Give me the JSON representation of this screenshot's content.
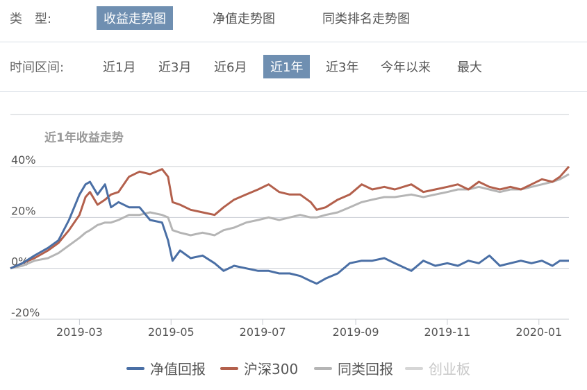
{
  "filters": {
    "type_label": "类　型:",
    "type_tabs": [
      {
        "label": "收益走势图",
        "active": true
      },
      {
        "label": "净值走势图",
        "active": false
      },
      {
        "label": "同类排名走势图",
        "active": false
      }
    ],
    "range_label": "时间区间:",
    "range_tabs": [
      {
        "label": "近1月",
        "active": false
      },
      {
        "label": "近3月",
        "active": false
      },
      {
        "label": "近6月",
        "active": false
      },
      {
        "label": "近1年",
        "active": true
      },
      {
        "label": "近3年",
        "active": false
      },
      {
        "label": "今年以来",
        "active": false
      },
      {
        "label": "最大",
        "active": false
      }
    ]
  },
  "colors": {
    "active_tab": "#6f8fb1",
    "series": [
      "#4a6fa5",
      "#b3604c",
      "#b5b5b5",
      "#d6d6d6"
    ]
  },
  "chart_data": {
    "type": "line",
    "title": "近1年收益走势",
    "ylim": [
      -20,
      40
    ],
    "yticks": [
      -20,
      0,
      20,
      40
    ],
    "ytick_labels": [
      "-20%",
      "0%",
      "20%",
      "40%"
    ],
    "xlim": [
      "2019-01-14",
      "2020-01-21"
    ],
    "xticks": [
      "2019-03-01",
      "2019-05-01",
      "2019-07-01",
      "2019-09-01",
      "2019-11-01",
      "2020-01-01"
    ],
    "xtick_labels": [
      "2019-03",
      "2019-05",
      "2019-07",
      "2019-09",
      "2019-11",
      "2020-01"
    ],
    "grid": true,
    "legend_position": "bottom",
    "series": [
      {
        "name": "净值回报",
        "x": [
          "2019-01-14",
          "2019-01-22",
          "2019-01-30",
          "2019-02-08",
          "2019-02-15",
          "2019-02-22",
          "2019-03-01",
          "2019-03-05",
          "2019-03-08",
          "2019-03-13",
          "2019-03-18",
          "2019-03-22",
          "2019-03-27",
          "2019-04-03",
          "2019-04-10",
          "2019-04-17",
          "2019-04-25",
          "2019-04-29",
          "2019-05-02",
          "2019-05-07",
          "2019-05-14",
          "2019-05-22",
          "2019-05-30",
          "2019-06-05",
          "2019-06-12",
          "2019-06-20",
          "2019-06-28",
          "2019-07-05",
          "2019-07-12",
          "2019-07-19",
          "2019-07-26",
          "2019-08-02",
          "2019-08-06",
          "2019-08-12",
          "2019-08-20",
          "2019-08-28",
          "2019-09-05",
          "2019-09-12",
          "2019-09-20",
          "2019-09-27",
          "2019-10-08",
          "2019-10-16",
          "2019-10-24",
          "2019-11-01",
          "2019-11-08",
          "2019-11-15",
          "2019-11-22",
          "2019-11-29",
          "2019-12-06",
          "2019-12-13",
          "2019-12-20",
          "2019-12-27",
          "2020-01-03",
          "2020-01-10",
          "2020-01-15",
          "2020-01-21"
        ],
        "values": [
          0,
          2,
          5,
          8,
          11,
          19,
          29,
          33,
          34,
          29,
          33,
          24,
          26,
          24,
          24,
          19,
          18,
          11,
          3,
          7,
          4,
          5,
          2,
          -1,
          1,
          0,
          -1,
          -1,
          -2,
          -2,
          -3,
          -5,
          -6,
          -4,
          -2,
          2,
          3,
          3,
          4,
          2,
          -1,
          3,
          1,
          2,
          1,
          3,
          2,
          5,
          1,
          2,
          3,
          2,
          3,
          1,
          3,
          3
        ]
      },
      {
        "name": "沪深300",
        "x": [
          "2019-01-14",
          "2019-01-22",
          "2019-01-30",
          "2019-02-08",
          "2019-02-15",
          "2019-02-22",
          "2019-03-01",
          "2019-03-05",
          "2019-03-08",
          "2019-03-13",
          "2019-03-18",
          "2019-03-22",
          "2019-03-27",
          "2019-04-03",
          "2019-04-10",
          "2019-04-17",
          "2019-04-25",
          "2019-04-29",
          "2019-05-02",
          "2019-05-07",
          "2019-05-14",
          "2019-05-22",
          "2019-05-30",
          "2019-06-05",
          "2019-06-12",
          "2019-06-20",
          "2019-06-28",
          "2019-07-05",
          "2019-07-12",
          "2019-07-19",
          "2019-07-26",
          "2019-08-02",
          "2019-08-06",
          "2019-08-12",
          "2019-08-20",
          "2019-08-28",
          "2019-09-05",
          "2019-09-12",
          "2019-09-20",
          "2019-09-27",
          "2019-10-08",
          "2019-10-16",
          "2019-10-24",
          "2019-11-01",
          "2019-11-08",
          "2019-11-15",
          "2019-11-22",
          "2019-11-29",
          "2019-12-06",
          "2019-12-13",
          "2019-12-20",
          "2019-12-27",
          "2020-01-03",
          "2020-01-10",
          "2020-01-15",
          "2020-01-21"
        ],
        "values": [
          0,
          2,
          4,
          7,
          10,
          15,
          21,
          28,
          30,
          25,
          27,
          29,
          30,
          36,
          38,
          37,
          39,
          36,
          26,
          25,
          23,
          22,
          21,
          24,
          27,
          29,
          31,
          33,
          30,
          29,
          29,
          26,
          23,
          24,
          27,
          29,
          33,
          31,
          32,
          31,
          33,
          30,
          31,
          32,
          33,
          31,
          34,
          32,
          31,
          32,
          31,
          33,
          35,
          34,
          36,
          40
        ]
      },
      {
        "name": "同类回报",
        "x": [
          "2019-01-14",
          "2019-01-22",
          "2019-01-30",
          "2019-02-08",
          "2019-02-15",
          "2019-02-22",
          "2019-03-01",
          "2019-03-05",
          "2019-03-08",
          "2019-03-13",
          "2019-03-18",
          "2019-03-22",
          "2019-03-27",
          "2019-04-03",
          "2019-04-10",
          "2019-04-17",
          "2019-04-25",
          "2019-04-29",
          "2019-05-02",
          "2019-05-07",
          "2019-05-14",
          "2019-05-22",
          "2019-05-30",
          "2019-06-05",
          "2019-06-12",
          "2019-06-20",
          "2019-06-28",
          "2019-07-05",
          "2019-07-12",
          "2019-07-19",
          "2019-07-26",
          "2019-08-02",
          "2019-08-06",
          "2019-08-12",
          "2019-08-20",
          "2019-08-28",
          "2019-09-05",
          "2019-09-12",
          "2019-09-20",
          "2019-09-27",
          "2019-10-08",
          "2019-10-16",
          "2019-10-24",
          "2019-11-01",
          "2019-11-08",
          "2019-11-15",
          "2019-11-22",
          "2019-11-29",
          "2019-12-06",
          "2019-12-13",
          "2019-12-20",
          "2019-12-27",
          "2020-01-03",
          "2020-01-10",
          "2020-01-15",
          "2020-01-21"
        ],
        "values": [
          0,
          1,
          3,
          4,
          6,
          9,
          12,
          14,
          15,
          17,
          18,
          18,
          19,
          21,
          21,
          22,
          21,
          20,
          15,
          14,
          13,
          14,
          13,
          15,
          16,
          18,
          19,
          20,
          19,
          20,
          21,
          20,
          20,
          21,
          22,
          24,
          26,
          27,
          28,
          28,
          29,
          28,
          29,
          30,
          31,
          31,
          32,
          31,
          30,
          31,
          31,
          32,
          33,
          34,
          35,
          37
        ]
      },
      {
        "name": "创业板",
        "hidden": true,
        "x": [],
        "values": []
      }
    ]
  }
}
